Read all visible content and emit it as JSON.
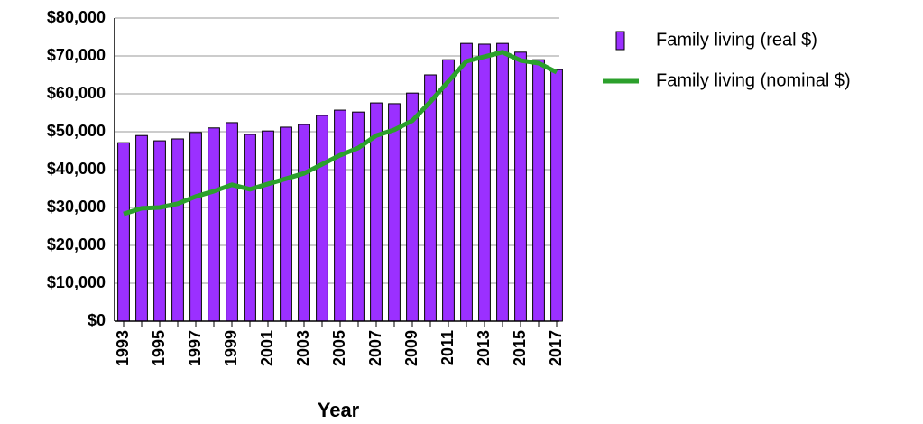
{
  "chart_data": {
    "type": "bar_line",
    "x_label": "Year",
    "categories": [
      "1993",
      null,
      "1995",
      null,
      "1997",
      null,
      "1999",
      null,
      "2001",
      null,
      "2003",
      null,
      "2005",
      null,
      "2007",
      null,
      "2009",
      null,
      "2011",
      null,
      "2013",
      null,
      "2015",
      null,
      "2017"
    ],
    "series": [
      {
        "name": "Family living (real $)",
        "type": "bar",
        "color": "#9b30ff",
        "values": [
          47100,
          49000,
          47600,
          48100,
          49800,
          51000,
          52400,
          49300,
          50200,
          51200,
          51900,
          54300,
          55700,
          55200,
          57600,
          57400,
          60200,
          65000,
          69000,
          73300,
          73100,
          73300,
          71000,
          69000,
          66400
        ]
      },
      {
        "name": "Family living (nominal $)",
        "type": "line",
        "color": "#2ca02c",
        "values": [
          28300,
          29800,
          30000,
          31000,
          32900,
          34300,
          36000,
          34800,
          36200,
          37600,
          39000,
          41400,
          43800,
          45700,
          49000,
          50500,
          52900,
          57900,
          63300,
          68600,
          69800,
          71000,
          68800,
          68100,
          65700
        ]
      }
    ],
    "ylim": [
      0,
      80000
    ],
    "yticks": [
      {
        "value": 0,
        "label": "$0"
      },
      {
        "value": 10000,
        "label": "$10,000"
      },
      {
        "value": 20000,
        "label": "$20,000"
      },
      {
        "value": 30000,
        "label": "$30,000"
      },
      {
        "value": 40000,
        "label": "$40,000"
      },
      {
        "value": 50000,
        "label": "$50,000"
      },
      {
        "value": 60000,
        "label": "$60,000"
      },
      {
        "value": 70000,
        "label": "$70,000"
      },
      {
        "value": 80000,
        "label": "$80,000"
      }
    ],
    "grid": true
  }
}
